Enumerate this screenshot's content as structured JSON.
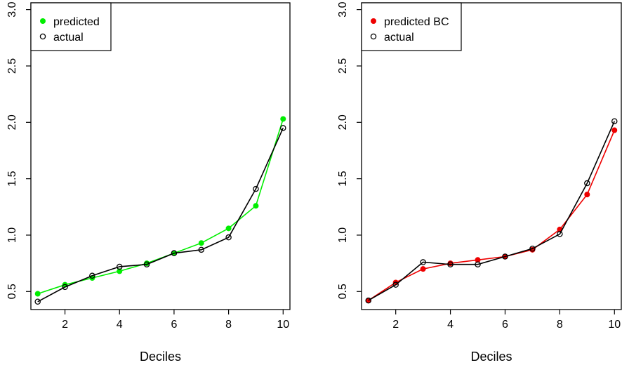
{
  "chart_data": [
    {
      "type": "line",
      "xlabel": "Deciles",
      "ylabel": "",
      "xlim": [
        0.75,
        10.25
      ],
      "ylim": [
        0.34,
        3.06
      ],
      "x": [
        1,
        2,
        3,
        4,
        5,
        6,
        7,
        8,
        9,
        10
      ],
      "x_ticks": [
        "2",
        "4",
        "6",
        "8",
        "10"
      ],
      "y_ticks": [
        "0.5",
        "1.0",
        "1.5",
        "2.0",
        "2.5",
        "3.0"
      ],
      "grid": false,
      "legend_position": "top-left",
      "series": [
        {
          "name": "predicted",
          "color": "#00ee00",
          "marker": "filled-circle",
          "values": [
            0.48,
            0.56,
            0.62,
            0.68,
            0.75,
            0.84,
            0.93,
            1.06,
            1.26,
            2.03
          ]
        },
        {
          "name": "actual",
          "color": "#000000",
          "marker": "open-circle",
          "values": [
            0.41,
            0.54,
            0.64,
            0.72,
            0.74,
            0.84,
            0.87,
            0.98,
            1.41,
            1.95
          ]
        }
      ]
    },
    {
      "type": "line",
      "xlabel": "Deciles",
      "ylabel": "",
      "xlim": [
        0.75,
        10.25
      ],
      "ylim": [
        0.34,
        3.06
      ],
      "x": [
        1,
        2,
        3,
        4,
        5,
        6,
        7,
        8,
        9,
        10
      ],
      "x_ticks": [
        "2",
        "4",
        "6",
        "8",
        "10"
      ],
      "y_ticks": [
        "0.5",
        "1.0",
        "1.5",
        "2.0",
        "2.5",
        "3.0"
      ],
      "grid": false,
      "legend_position": "top-left",
      "series": [
        {
          "name": "predicted BC",
          "color": "#ee0000",
          "marker": "filled-circle",
          "values": [
            0.42,
            0.58,
            0.7,
            0.75,
            0.78,
            0.81,
            0.87,
            1.05,
            1.36,
            1.93
          ]
        },
        {
          "name": "actual",
          "color": "#000000",
          "marker": "open-circle",
          "values": [
            0.42,
            0.56,
            0.76,
            0.74,
            0.74,
            0.81,
            0.88,
            1.01,
            1.46,
            2.01
          ]
        }
      ]
    }
  ]
}
